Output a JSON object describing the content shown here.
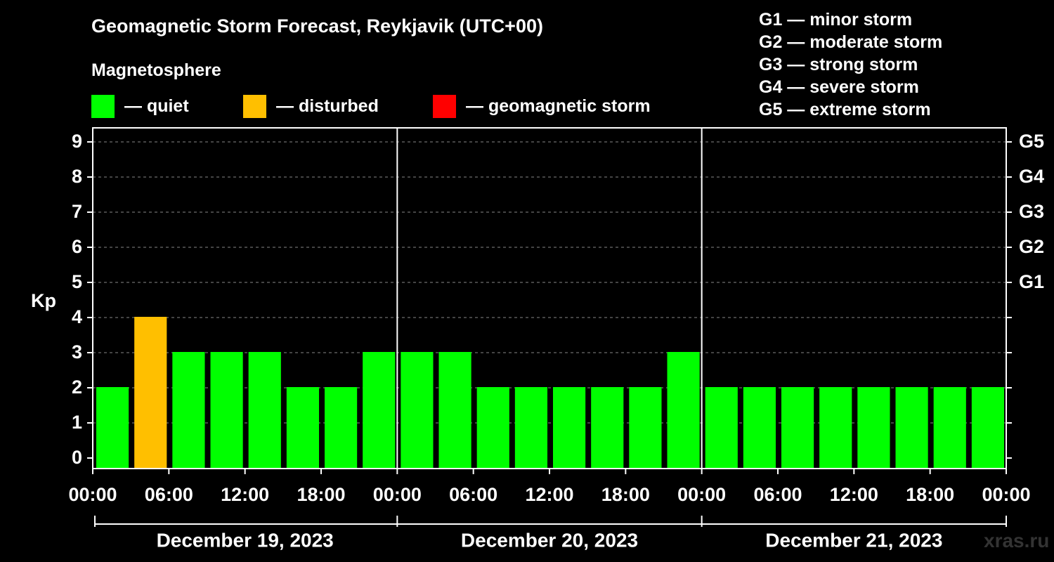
{
  "colors": {
    "quiet": "#00ff00",
    "disturbed": "#ffbf00",
    "storm": "#ff0000",
    "background": "#000000",
    "grid": "#888888"
  },
  "legend": {
    "heading": "Magnetosphere",
    "items": [
      {
        "label": "— quiet",
        "color": "#00ff00"
      },
      {
        "label": "— disturbed",
        "color": "#ffbf00"
      },
      {
        "label": "— geomagnetic storm",
        "color": "#ff0000"
      }
    ]
  },
  "gscale": [
    "G1 — minor storm",
    "G2 — moderate storm",
    "G3 — strong storm",
    "G4 — severe storm",
    "G5 — extreme storm"
  ],
  "watermark": "xras.ru",
  "chart_data": {
    "type": "bar",
    "title": "Geomagnetic Storm Forecast, Reykjavik (UTC+00)",
    "ylabel": "Kp",
    "ylim": [
      0,
      9
    ],
    "yticks": [
      "0",
      "1",
      "2",
      "3",
      "4",
      "5",
      "6",
      "7",
      "8",
      "9"
    ],
    "right_axis_labels": [
      {
        "kp": 5,
        "label": "G1"
      },
      {
        "kp": 6,
        "label": "G2"
      },
      {
        "kp": 7,
        "label": "G3"
      },
      {
        "kp": 8,
        "label": "G4"
      },
      {
        "kp": 9,
        "label": "G5"
      }
    ],
    "grid": true,
    "xtick_labels": [
      "00:00",
      "06:00",
      "12:00",
      "18:00",
      "00:00",
      "06:00",
      "12:00",
      "18:00",
      "00:00",
      "06:00",
      "12:00",
      "18:00",
      "00:00"
    ],
    "days": [
      "December 19, 2023",
      "December 20, 2023",
      "December 21, 2023"
    ],
    "interval_hours": 3,
    "series": [
      {
        "values": [
          2,
          4,
          3,
          3,
          3,
          2,
          2,
          3,
          3,
          3,
          2,
          2,
          2,
          2,
          2,
          3,
          2,
          2,
          2,
          2,
          2,
          2,
          2,
          2
        ]
      }
    ]
  }
}
